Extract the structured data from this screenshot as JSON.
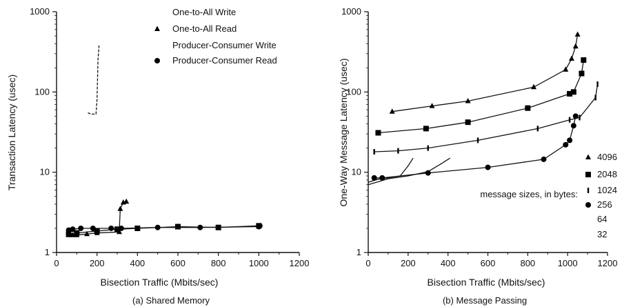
{
  "chart_data": [
    {
      "type": "line",
      "caption": "(a) Shared Memory",
      "xlabel": "Bisection Traffic (Mbits/sec)",
      "ylabel": "Transaction Latency (usec)",
      "xlim": [
        0,
        1200
      ],
      "ylim": [
        1,
        1000
      ],
      "yscale": "log",
      "xticks": [
        "0",
        "200",
        "400",
        "600",
        "800",
        "1000",
        "1200"
      ],
      "yticks": [
        "1",
        "10",
        "100",
        "1000"
      ],
      "legend_placement": "top-right",
      "legend": [
        "One-to-All Write",
        "One-to-All Read",
        "Producer-Consumer Write",
        "Producer-Consumer Read"
      ],
      "series": [
        {
          "name": "One-to-All Write",
          "marker": "none",
          "dash": true,
          "points": [
            [
              155,
              55
            ],
            [
              170,
              53
            ],
            [
              195,
              53
            ],
            [
              200,
              80
            ],
            [
              205,
              250
            ],
            [
              210,
              380
            ]
          ]
        },
        {
          "name": "One-to-All Read",
          "marker": "triangle",
          "dash": false,
          "points": [
            [
              60,
              1.65
            ],
            [
              80,
              1.65
            ],
            [
              100,
              1.65
            ],
            [
              150,
              1.7
            ],
            [
              200,
              1.75
            ],
            [
              310,
              1.8
            ],
            [
              315,
              3.5
            ],
            [
              330,
              4.2
            ],
            [
              345,
              4.3
            ]
          ]
        },
        {
          "name": "Producer-Consumer Write",
          "marker": "square",
          "dash": false,
          "points": [
            [
              60,
              1.7
            ],
            [
              100,
              1.75
            ],
            [
              200,
              1.85
            ],
            [
              300,
              1.95
            ],
            [
              400,
              2.0
            ],
            [
              600,
              2.1
            ],
            [
              800,
              2.05
            ],
            [
              1000,
              2.15
            ]
          ]
        },
        {
          "name": "Producer-Consumer Read",
          "marker": "circle",
          "dash": false,
          "points": [
            [
              60,
              1.9
            ],
            [
              80,
              1.95
            ],
            [
              120,
              2.0
            ],
            [
              180,
              2.0
            ],
            [
              270,
              2.0
            ],
            [
              320,
              2.0
            ],
            [
              500,
              2.05
            ],
            [
              710,
              2.05
            ],
            [
              1000,
              2.1
            ],
            [
              1005,
              2.15
            ]
          ]
        }
      ]
    },
    {
      "type": "line",
      "caption": "(b) Message Passing",
      "xlabel": "Bisection Traffic (Mbits/sec)",
      "ylabel": "One-Way Message Latency (usec)",
      "xlim": [
        0,
        1200
      ],
      "ylim": [
        1,
        1000
      ],
      "yscale": "log",
      "xticks": [
        "0",
        "200",
        "400",
        "600",
        "800",
        "1000",
        "1200"
      ],
      "yticks": [
        "1",
        "10",
        "100",
        "1000"
      ],
      "legend_title": "message sizes, in bytes:",
      "legend_placement": "bottom-right",
      "legend": [
        "4096",
        "2048",
        "1024",
        "256",
        "64",
        "32"
      ],
      "series": [
        {
          "name": "4096",
          "marker": "triangle",
          "points": [
            [
              120,
              57
            ],
            [
              320,
              67
            ],
            [
              500,
              77
            ],
            [
              830,
              115
            ],
            [
              990,
              190
            ],
            [
              1020,
              260
            ],
            [
              1040,
              370
            ],
            [
              1050,
              520
            ]
          ]
        },
        {
          "name": "2048",
          "marker": "square",
          "points": [
            [
              50,
              31
            ],
            [
              290,
              35
            ],
            [
              500,
              42
            ],
            [
              800,
              63
            ],
            [
              1010,
              95
            ],
            [
              1030,
              100
            ],
            [
              1070,
              170
            ],
            [
              1080,
              250
            ]
          ]
        },
        {
          "name": "1024",
          "marker": "bar",
          "points": [
            [
              30,
              18
            ],
            [
              150,
              18.5
            ],
            [
              300,
              20
            ],
            [
              550,
              25
            ],
            [
              850,
              35
            ],
            [
              1010,
              45
            ],
            [
              1060,
              48
            ],
            [
              1140,
              85
            ],
            [
              1150,
              125
            ]
          ]
        },
        {
          "name": "256",
          "marker": "circle",
          "points": [
            [
              30,
              8.5
            ],
            [
              70,
              8.5
            ],
            [
              300,
              9.8
            ],
            [
              600,
              11.5
            ],
            [
              880,
              14.5
            ],
            [
              990,
              22
            ],
            [
              1010,
              25
            ],
            [
              1030,
              38
            ],
            [
              1040,
              50
            ]
          ]
        },
        {
          "name": "64",
          "marker": "none",
          "points": [
            [
              0,
              7.5
            ],
            [
              50,
              8.2
            ],
            [
              100,
              8.5
            ],
            [
              160,
              9
            ],
            [
              200,
              12
            ],
            [
              225,
              15
            ]
          ]
        },
        {
          "name": "32",
          "marker": "none",
          "points": [
            [
              0,
              7.0
            ],
            [
              100,
              8.3
            ],
            [
              200,
              9.0
            ],
            [
              300,
              10.2
            ],
            [
              360,
              12.5
            ],
            [
              410,
              15
            ]
          ]
        }
      ]
    }
  ]
}
